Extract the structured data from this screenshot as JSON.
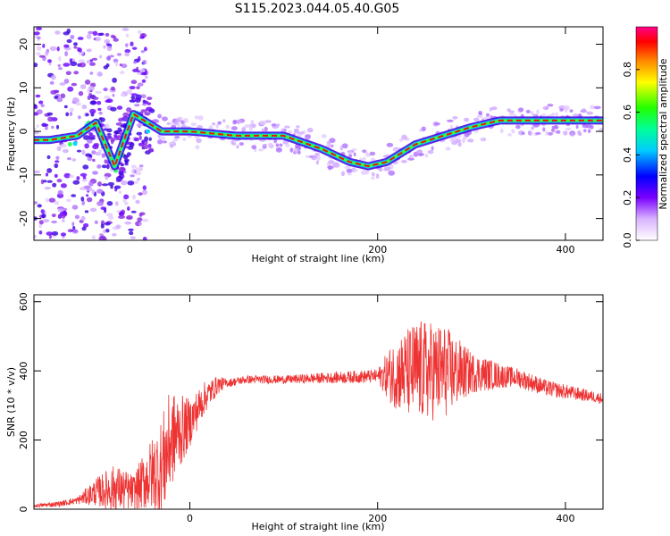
{
  "title": "S115.2023.044.05.40.G05",
  "colors": {
    "snr_line": "#ee3333",
    "track": "#ee1111",
    "axis": "#000000"
  },
  "chart_data": [
    {
      "type": "heatmap",
      "xlabel": "Height of straight line (km)",
      "ylabel": "Frequency (Hz)",
      "xlim": [
        -166,
        440
      ],
      "ylim": [
        -25,
        24
      ],
      "x_ticks": [
        0,
        200,
        400
      ],
      "y_ticks": [
        -20,
        -10,
        0,
        10,
        20
      ],
      "colorbar": {
        "label": "Normalized spectral amplitude",
        "range": [
          0,
          1
        ],
        "ticks": [
          "0.0",
          "0.2",
          "0.4",
          "0.6",
          "0.8"
        ]
      },
      "ridge": [
        {
          "x": -150,
          "y": -2
        },
        {
          "x": -120,
          "y": -1
        },
        {
          "x": -100,
          "y": 2
        },
        {
          "x": -80,
          "y": -8
        },
        {
          "x": -60,
          "y": 4
        },
        {
          "x": -45,
          "y": 2
        },
        {
          "x": -30,
          "y": 0
        },
        {
          "x": 0,
          "y": 0
        },
        {
          "x": 50,
          "y": -1
        },
        {
          "x": 100,
          "y": -1
        },
        {
          "x": 140,
          "y": -4
        },
        {
          "x": 170,
          "y": -7
        },
        {
          "x": 190,
          "y": -8
        },
        {
          "x": 210,
          "y": -7
        },
        {
          "x": 240,
          "y": -3
        },
        {
          "x": 270,
          "y": -1
        },
        {
          "x": 300,
          "y": 1
        },
        {
          "x": 330,
          "y": 2.5
        },
        {
          "x": 440,
          "y": 2.5
        }
      ]
    },
    {
      "type": "line",
      "xlabel": "Height of straight line (km)",
      "ylabel": "SNR (10 * v/v)",
      "xlim": [
        -166,
        440
      ],
      "ylim": [
        0,
        620
      ],
      "x_ticks": [
        0,
        200,
        400
      ],
      "y_ticks": [
        0,
        200,
        400,
        600
      ],
      "series": [
        {
          "trend": [
            {
              "x": -166,
              "y": 10
            },
            {
              "x": -140,
              "y": 15
            },
            {
              "x": -120,
              "y": 25
            },
            {
              "x": -100,
              "y": 50
            },
            {
              "x": -80,
              "y": 60
            },
            {
              "x": -60,
              "y": 50
            },
            {
              "x": -45,
              "y": 90
            },
            {
              "x": -30,
              "y": 120
            },
            {
              "x": -20,
              "y": 200
            },
            {
              "x": 0,
              "y": 250
            },
            {
              "x": 15,
              "y": 320
            },
            {
              "x": 30,
              "y": 360
            },
            {
              "x": 60,
              "y": 375
            },
            {
              "x": 100,
              "y": 375
            },
            {
              "x": 150,
              "y": 380
            },
            {
              "x": 200,
              "y": 385
            },
            {
              "x": 250,
              "y": 400
            },
            {
              "x": 300,
              "y": 395
            },
            {
              "x": 350,
              "y": 380
            },
            {
              "x": 380,
              "y": 350
            },
            {
              "x": 410,
              "y": 335
            },
            {
              "x": 440,
              "y": 320
            }
          ],
          "noise": [
            {
              "x": -166,
              "y": 5
            },
            {
              "x": -120,
              "y": 10
            },
            {
              "x": -100,
              "y": 40
            },
            {
              "x": -80,
              "y": 70
            },
            {
              "x": -60,
              "y": 50
            },
            {
              "x": -40,
              "y": 110
            },
            {
              "x": -25,
              "y": 160
            },
            {
              "x": 0,
              "y": 70
            },
            {
              "x": 20,
              "y": 40
            },
            {
              "x": 40,
              "y": 12
            },
            {
              "x": 100,
              "y": 12
            },
            {
              "x": 200,
              "y": 20
            },
            {
              "x": 215,
              "y": 90
            },
            {
              "x": 240,
              "y": 150
            },
            {
              "x": 270,
              "y": 140
            },
            {
              "x": 300,
              "y": 60
            },
            {
              "x": 340,
              "y": 30
            },
            {
              "x": 440,
              "y": 15
            }
          ]
        }
      ]
    }
  ]
}
